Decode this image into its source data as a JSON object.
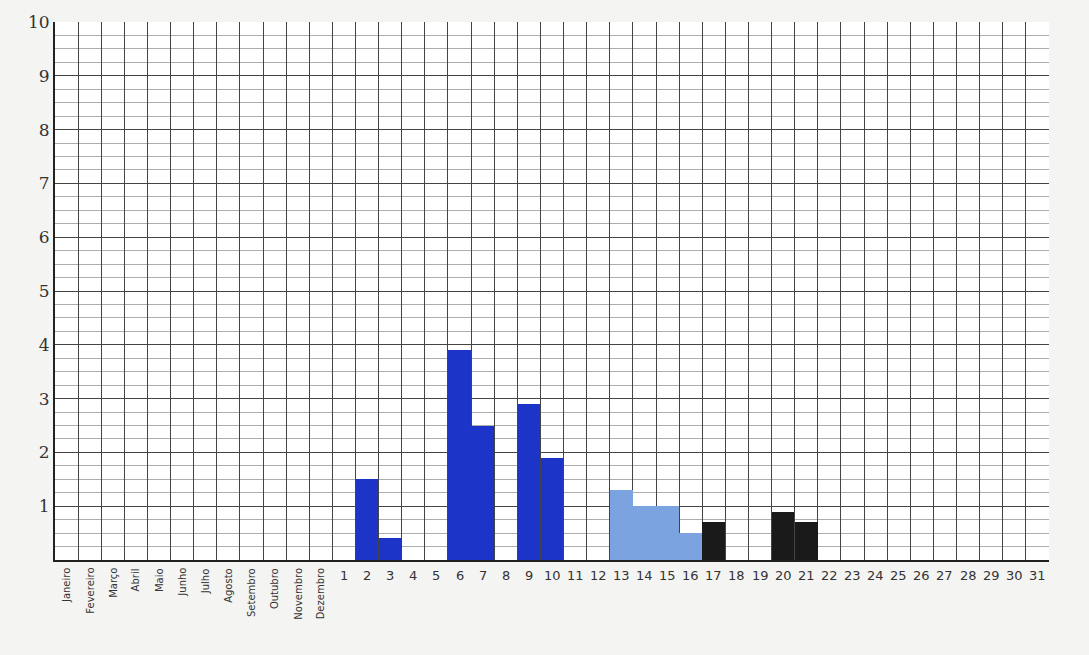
{
  "chart_data": {
    "type": "bar",
    "categories": [
      "Janeiro",
      "Fevereiro",
      "Março",
      "Abril",
      "Maio",
      "Junho",
      "Julho",
      "Agosto",
      "Setembro",
      "Outubro",
      "Novembro",
      "Dezembro",
      "1",
      "2",
      "3",
      "4",
      "5",
      "6",
      "7",
      "8",
      "9",
      "10",
      "11",
      "12",
      "13",
      "14",
      "15",
      "16",
      "17",
      "18",
      "19",
      "20",
      "21",
      "22",
      "23",
      "24",
      "25",
      "26",
      "27",
      "28",
      "29",
      "30",
      "31"
    ],
    "values": [
      null,
      null,
      null,
      null,
      null,
      null,
      null,
      null,
      null,
      null,
      null,
      null,
      null,
      1.5,
      0.4,
      null,
      null,
      3.9,
      2.5,
      null,
      2.9,
      1.9,
      null,
      null,
      1.3,
      1.0,
      1.0,
      0.5,
      0.7,
      null,
      null,
      0.9,
      0.7,
      null,
      null,
      null,
      null,
      null,
      null,
      null,
      null,
      null,
      null
    ],
    "colors": [
      null,
      null,
      null,
      null,
      null,
      null,
      null,
      null,
      null,
      null,
      null,
      null,
      null,
      "#1c34c8",
      "#1c34c8",
      null,
      null,
      "#1c34c8",
      "#1c34c8",
      null,
      "#1c34c8",
      "#1c34c8",
      null,
      null,
      "#7aa3e0",
      "#7aa3e0",
      "#7aa3e0",
      "#7aa3e0",
      "#1a1a1a",
      null,
      null,
      "#1a1a1a",
      "#1a1a1a",
      null,
      null,
      null,
      null,
      null,
      null,
      null,
      null,
      null,
      null
    ],
    "ylim": [
      0,
      10
    ],
    "yticks": [
      1,
      2,
      3,
      4,
      5,
      6,
      7,
      8,
      9,
      10
    ],
    "grid": true
  }
}
